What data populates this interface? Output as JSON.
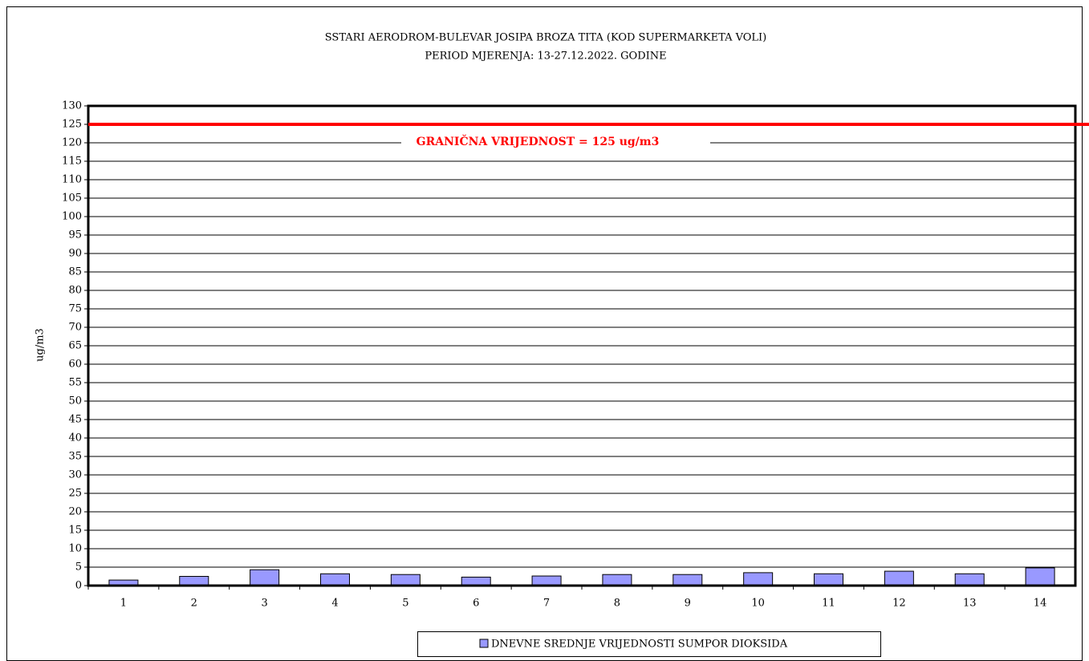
{
  "chart_data": {
    "type": "bar",
    "title": "SSTARI AERODROM-BULEVAR JOSIPA BROZA TITA (KOD SUPERMARKETA VOLI)",
    "subtitle": "PERIOD MJERENJA: 13-27.12.2022. GODINE",
    "y_label": "ug/m3",
    "categories": [
      "1",
      "2",
      "3",
      "4",
      "5",
      "6",
      "7",
      "8",
      "9",
      "10",
      "11",
      "12",
      "13",
      "14"
    ],
    "series": [
      {
        "name": "DNEVNE SREDNJE VRIJEDNOSTI SUMPOR DIOKSIDA",
        "color": "#9999ff",
        "values": [
          1.5,
          2.5,
          4.3,
          3.2,
          3.0,
          2.3,
          2.6,
          3.0,
          3.0,
          3.5,
          3.2,
          3.9,
          3.2,
          4.8
        ]
      }
    ],
    "threshold": {
      "value": 125,
      "label": "GRANIČNA VRIJEDNOST = 125 ug/m3",
      "color": "#ff0000"
    },
    "ylim": [
      0,
      130
    ],
    "yticks": [
      0,
      5,
      10,
      15,
      20,
      25,
      30,
      35,
      40,
      45,
      50,
      55,
      60,
      65,
      70,
      75,
      80,
      85,
      90,
      95,
      100,
      105,
      110,
      115,
      120,
      125,
      130
    ],
    "grid": true,
    "legend": "bottom"
  }
}
